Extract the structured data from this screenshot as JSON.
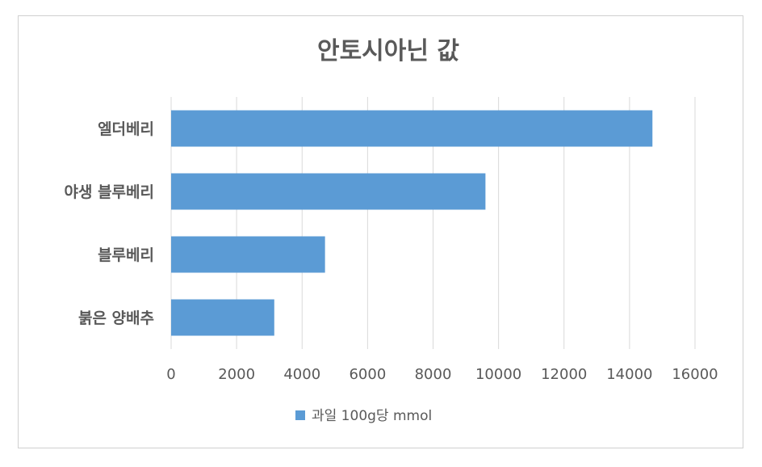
{
  "chart_data": {
    "type": "bar",
    "orientation": "horizontal",
    "title": "안토시아닌 값",
    "categories": [
      "엘더베리",
      "야생 블루베리",
      "블루베리",
      "붉은 양배추"
    ],
    "series": [
      {
        "name": "과일 100g당 mmol",
        "values": [
          14700,
          9600,
          4700,
          3150
        ],
        "color": "#5b9bd5"
      }
    ],
    "xlim": [
      0,
      16000
    ],
    "xticks": [
      "0",
      "2000",
      "4000",
      "6000",
      "8000",
      "10000",
      "12000",
      "14000",
      "16000"
    ],
    "xlabel": "",
    "ylabel": "",
    "grid": "vertical",
    "legend_position": "bottom"
  }
}
